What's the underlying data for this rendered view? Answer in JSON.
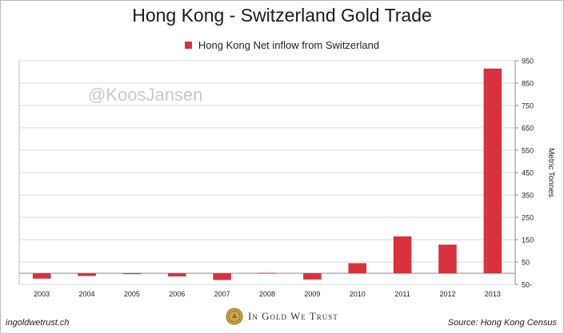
{
  "chart_data": {
    "type": "bar",
    "title": "Hong Kong - Switzerland Gold Trade",
    "categories": [
      "2003",
      "2004",
      "2005",
      "2006",
      "2007",
      "2008",
      "2009",
      "2010",
      "2011",
      "2012",
      "2013"
    ],
    "series": [
      {
        "name": "Hong Kong Net inflow from Switzerland",
        "values": [
          -24,
          -12,
          -4,
          -14,
          -30,
          2,
          -28,
          45,
          165,
          128,
          915
        ]
      }
    ],
    "xlabel": "",
    "ylabel": "Metric Tonnes",
    "ylim": [
      -50,
      950
    ],
    "yticks": [
      -50,
      50,
      150,
      250,
      350,
      450,
      550,
      650,
      750,
      850,
      950
    ],
    "ytick_labels": [
      "50-",
      "50",
      "150",
      "250",
      "350",
      "450",
      "550",
      "650",
      "750",
      "850",
      "950"
    ],
    "grid": true,
    "legend_position": "top"
  },
  "colors": {
    "bar": "#d7323d",
    "grid": "#d9d9d9"
  },
  "watermark": "@KoosJansen",
  "footer": {
    "site": "ingoldwetrust.ch",
    "brand": "In Gold We Trust",
    "brand_icon": "gold-coin-icon",
    "source": "Source: Hong Kong Census"
  }
}
